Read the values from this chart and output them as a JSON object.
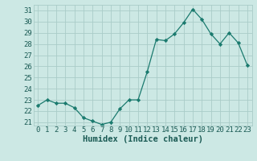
{
  "x": [
    0,
    1,
    2,
    3,
    4,
    5,
    6,
    7,
    8,
    9,
    10,
    11,
    12,
    13,
    14,
    15,
    16,
    17,
    18,
    19,
    20,
    21,
    22,
    23
  ],
  "y": [
    22.5,
    23.0,
    22.7,
    22.7,
    22.3,
    21.4,
    21.1,
    20.8,
    21.0,
    22.2,
    23.0,
    23.0,
    25.5,
    28.4,
    28.3,
    28.9,
    29.9,
    31.1,
    30.2,
    28.9,
    28.0,
    29.0,
    28.1,
    26.1
  ],
  "line_color": "#1a7a6e",
  "marker": "D",
  "marker_size": 2.2,
  "bg_color": "#cce8e4",
  "grid_color": "#aaccc8",
  "xlabel": "Humidex (Indice chaleur)",
  "ylabel_ticks": [
    21,
    22,
    23,
    24,
    25,
    26,
    27,
    28,
    29,
    30,
    31
  ],
  "xlim": [
    -0.5,
    23.5
  ],
  "ylim": [
    20.7,
    31.5
  ],
  "xlabel_fontsize": 7.5,
  "tick_fontsize": 6.5,
  "tick_color": "#1a5a54",
  "label_color": "#1a5a54"
}
